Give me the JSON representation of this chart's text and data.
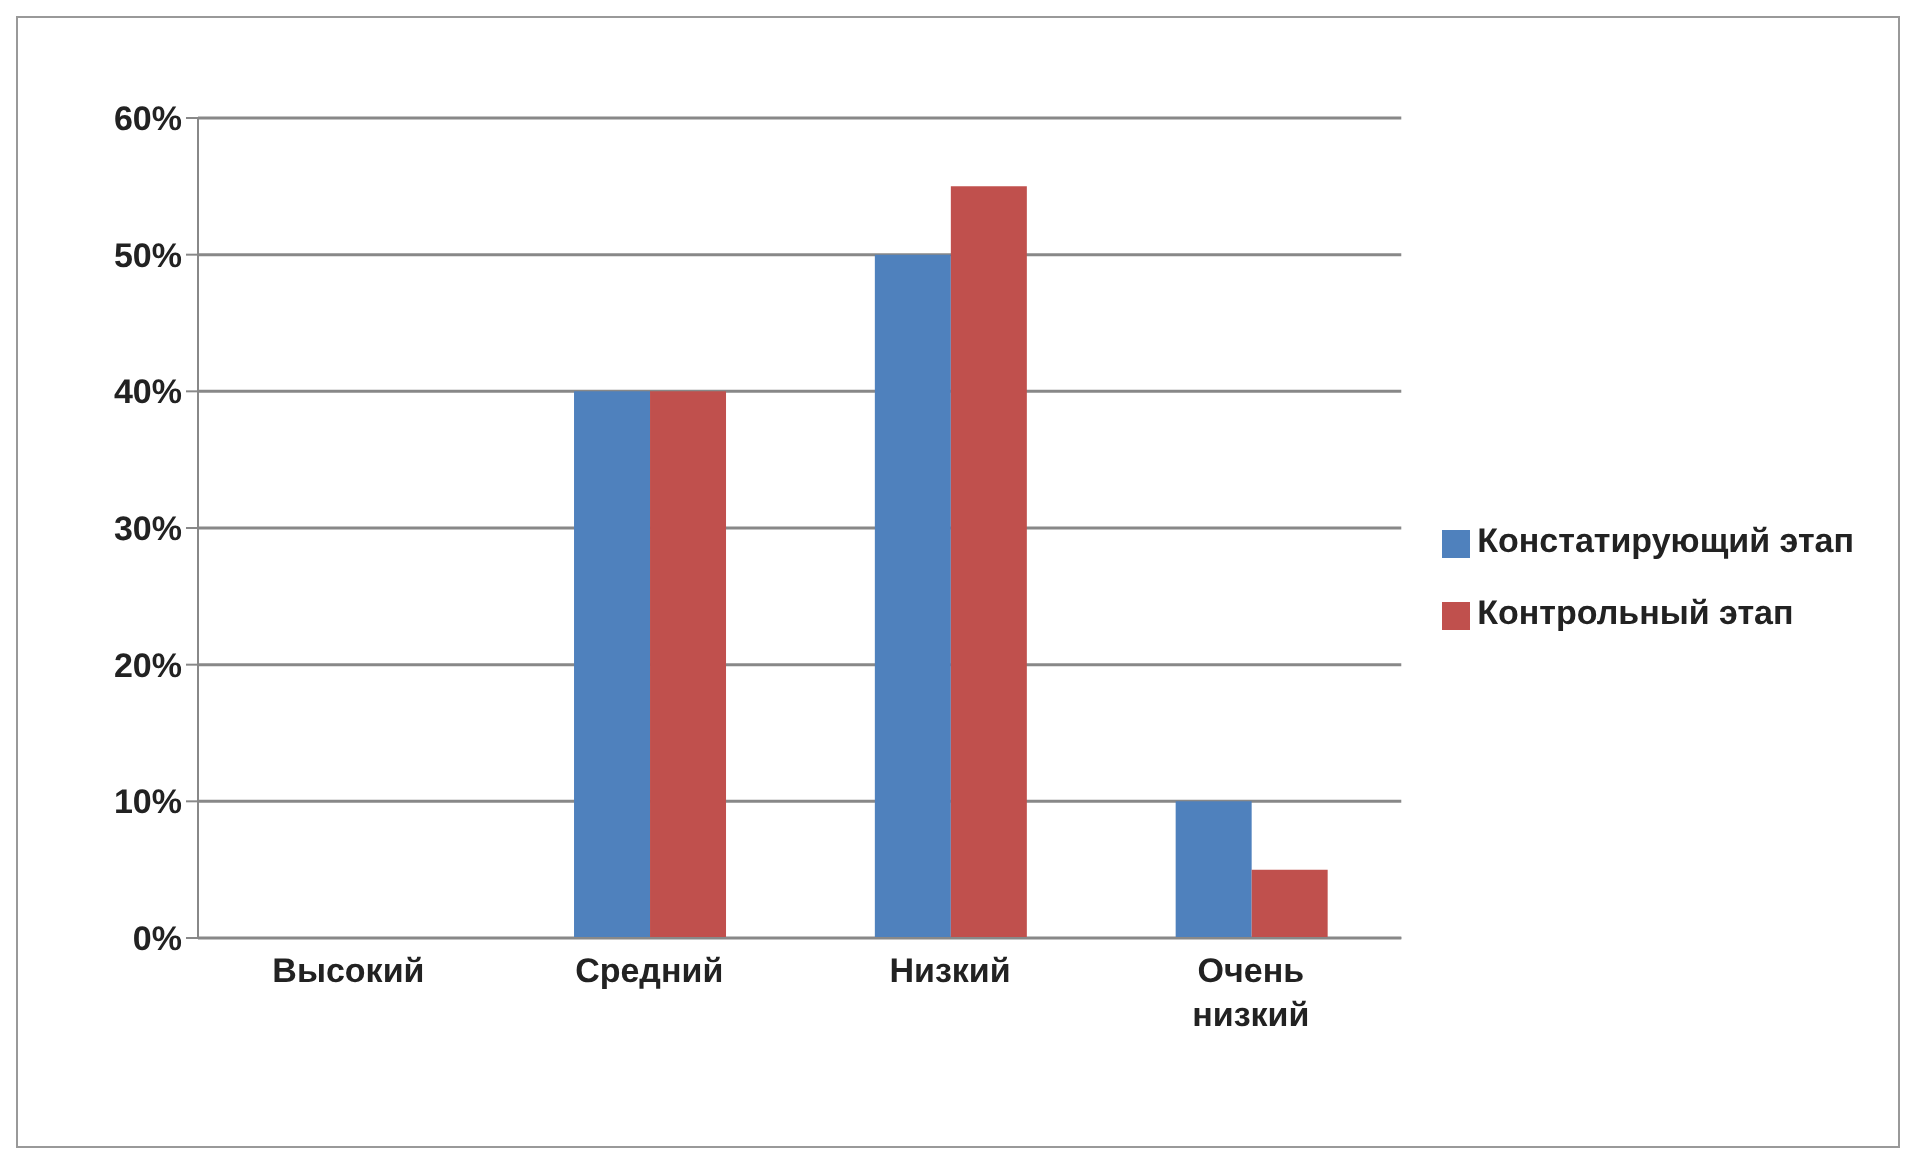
{
  "chart_data": {
    "type": "bar",
    "categories": [
      "Высокий",
      "Средний",
      "Низкий",
      "Очень низкий"
    ],
    "series": [
      {
        "name": "Констатирующий этап",
        "color": "#4f81bd",
        "values": [
          0,
          40,
          50,
          10
        ]
      },
      {
        "name": "Контрольный этап",
        "color": "#c0504d",
        "values": [
          0,
          40,
          55,
          5
        ]
      }
    ],
    "ylim": [
      0,
      60
    ],
    "yticks": [
      {
        "value": 0,
        "label": "0%"
      },
      {
        "value": 10,
        "label": "10%"
      },
      {
        "value": 20,
        "label": "20%"
      },
      {
        "value": 30,
        "label": "30%"
      },
      {
        "value": 40,
        "label": "40%"
      },
      {
        "value": 50,
        "label": "50%"
      },
      {
        "value": 60,
        "label": "60%"
      }
    ],
    "grid": "y",
    "legend": "right"
  }
}
